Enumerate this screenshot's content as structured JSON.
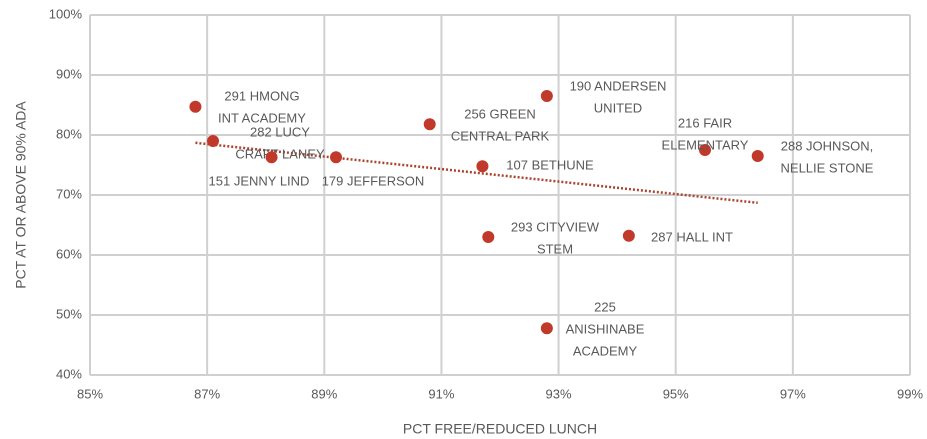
{
  "chart_data": {
    "type": "scatter",
    "x_label": "PCT FREE/REDUCED LUNCH",
    "y_label": "PCT AT OR ABOVE 90% ADA",
    "xlim": [
      85,
      99
    ],
    "ylim": [
      40,
      100
    ],
    "xticks": [
      {
        "value": 85,
        "label": "85%"
      },
      {
        "value": 87,
        "label": "87%"
      },
      {
        "value": 89,
        "label": "89%"
      },
      {
        "value": 91,
        "label": "91%"
      },
      {
        "value": 93,
        "label": "93%"
      },
      {
        "value": 95,
        "label": "95%"
      },
      {
        "value": 97,
        "label": "97%"
      },
      {
        "value": 99,
        "label": "99%"
      }
    ],
    "yticks": [
      {
        "value": 40,
        "label": "40%"
      },
      {
        "value": 50,
        "label": "50%"
      },
      {
        "value": 60,
        "label": "60%"
      },
      {
        "value": 70,
        "label": "70%"
      },
      {
        "value": 80,
        "label": "80%"
      },
      {
        "value": 90,
        "label": "90%"
      },
      {
        "value": 100,
        "label": "100%"
      }
    ],
    "grid": true,
    "color": "#c0392b",
    "x": [
      86.8,
      87.1,
      88.1,
      89.2,
      90.8,
      91.7,
      92.8,
      91.8,
      92.8,
      94.2,
      95.5,
      96.4
    ],
    "values": [
      84.7,
      79.0,
      76.3,
      76.3,
      81.8,
      74.8,
      86.5,
      63.0,
      47.8,
      63.2,
      77.5,
      76.5
    ],
    "labels": [
      [
        "291 HMONG",
        "INT ACADEMY"
      ],
      [
        "282 LUCY",
        "CRAFT LANEY"
      ],
      [
        "151 JENNY LIND"
      ],
      [
        "179 JEFFERSON"
      ],
      [
        "256 GREEN",
        "CENTRAL PARK"
      ],
      [
        "107 BETHUNE"
      ],
      [
        "190 ANDERSEN",
        "UNITED"
      ],
      [
        "293 CITYVIEW",
        "STEM"
      ],
      [
        "225",
        "ANISHINABE",
        "ACADEMY"
      ],
      [
        "287 HALL INT"
      ],
      [
        "216 FAIR",
        "ELEMENTARY"
      ],
      [
        "288 JOHNSON,",
        "NELLIE STONE"
      ]
    ],
    "trendline": {
      "color": "#a9442f",
      "x": [
        86.8,
        96.4
      ],
      "values": [
        78.7,
        68.7
      ]
    }
  }
}
